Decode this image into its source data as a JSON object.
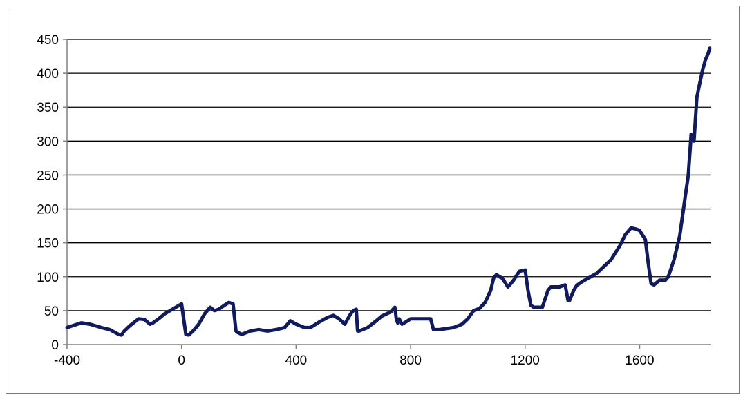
{
  "chart_data": {
    "type": "line",
    "title": "",
    "xlabel": "",
    "ylabel": "",
    "xlim": [
      -400,
      1850
    ],
    "ylim": [
      0,
      450
    ],
    "x_ticks": [
      -400,
      0,
      400,
      800,
      1200,
      1600
    ],
    "x_tick_labels": [
      "-400",
      "0",
      "400",
      "800",
      "1200",
      "1600"
    ],
    "y_ticks": [
      0,
      50,
      100,
      150,
      200,
      250,
      300,
      350,
      400,
      450
    ],
    "y_tick_labels": [
      "0",
      "50",
      "100",
      "150",
      "200",
      "250",
      "300",
      "350",
      "400",
      "450"
    ],
    "grid": "horizontal",
    "legend": "none",
    "series_color": "#101a63",
    "series": [
      {
        "x": [
          -400,
          -350,
          -320,
          -280,
          -250,
          -220,
          -210,
          -200,
          -180,
          -150,
          -130,
          -110,
          -100,
          -80,
          -60,
          -40,
          0,
          15,
          25,
          40,
          60,
          80,
          100,
          115,
          130,
          150,
          165,
          180,
          190,
          195,
          210,
          240,
          270,
          300,
          330,
          360,
          380,
          400,
          430,
          450,
          480,
          510,
          530,
          550,
          570,
          590,
          600,
          610,
          615,
          620,
          650,
          680,
          700,
          730,
          745,
          750,
          755,
          760,
          770,
          790,
          800,
          850,
          870,
          880,
          900,
          950,
          980,
          1000,
          1020,
          1040,
          1060,
          1080,
          1090,
          1100,
          1110,
          1120,
          1140,
          1160,
          1180,
          1200,
          1210,
          1220,
          1230,
          1240,
          1260,
          1280,
          1290,
          1300,
          1320,
          1340,
          1350,
          1355,
          1360,
          1370,
          1380,
          1400,
          1450,
          1500,
          1530,
          1550,
          1570,
          1590,
          1600,
          1620,
          1630,
          1640,
          1650,
          1670,
          1690,
          1700,
          1720,
          1740,
          1760,
          1770,
          1780,
          1790,
          1800,
          1810,
          1820,
          1830,
          1840,
          1845
        ],
        "y": [
          25,
          32,
          30,
          25,
          22,
          15,
          14,
          20,
          28,
          38,
          37,
          30,
          32,
          38,
          45,
          50,
          60,
          15,
          14,
          20,
          30,
          45,
          55,
          50,
          52,
          58,
          62,
          60,
          20,
          18,
          15,
          20,
          22,
          20,
          22,
          25,
          35,
          30,
          25,
          25,
          33,
          40,
          43,
          38,
          30,
          45,
          50,
          52,
          20,
          20,
          25,
          35,
          42,
          48,
          55,
          38,
          32,
          38,
          30,
          35,
          38,
          38,
          38,
          22,
          22,
          25,
          30,
          38,
          50,
          53,
          62,
          80,
          98,
          103,
          100,
          98,
          85,
          95,
          108,
          110,
          80,
          58,
          55,
          55,
          55,
          80,
          85,
          85,
          85,
          88,
          65,
          65,
          70,
          80,
          87,
          93,
          105,
          125,
          145,
          162,
          172,
          170,
          168,
          155,
          120,
          90,
          88,
          95,
          95,
          100,
          125,
          160,
          220,
          250,
          310,
          300,
          365,
          385,
          405,
          420,
          430,
          437
        ]
      }
    ]
  }
}
